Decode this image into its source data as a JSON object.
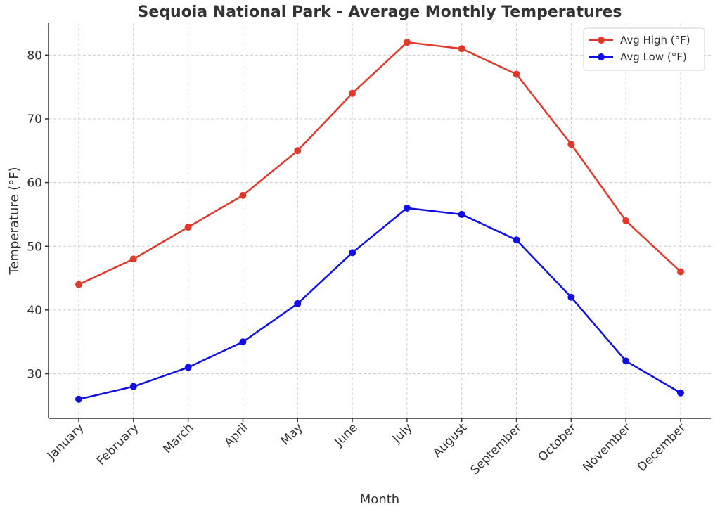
{
  "chart_data": {
    "type": "line",
    "title": "Sequoia National Park - Average Monthly Temperatures",
    "xlabel": "Month",
    "ylabel": "Temperature (°F)",
    "categories": [
      "January",
      "February",
      "March",
      "April",
      "May",
      "June",
      "July",
      "August",
      "September",
      "October",
      "November",
      "December"
    ],
    "ylim": [
      23,
      85
    ],
    "yticks": [
      30,
      40,
      50,
      60,
      70,
      80
    ],
    "grid": true,
    "legend_position": "top-right",
    "series": [
      {
        "name": "Avg High (°F)",
        "color": "#e0392b",
        "values": [
          44,
          48,
          53,
          58,
          65,
          74,
          82,
          81,
          77,
          66,
          54,
          46
        ]
      },
      {
        "name": "Avg Low (°F)",
        "color": "#1010e6",
        "values": [
          26,
          28,
          31,
          35,
          41,
          49,
          56,
          55,
          51,
          42,
          32,
          27
        ]
      }
    ]
  }
}
